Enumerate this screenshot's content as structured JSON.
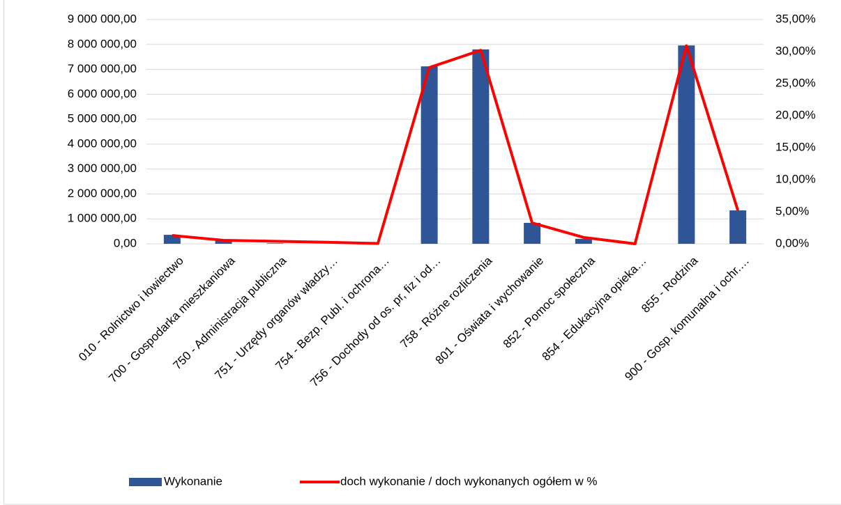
{
  "chart_data": {
    "type": "combo",
    "categories": [
      "010 - Rolnictwo i łowiectwo",
      "700 - Gospodarka mieszkaniowa",
      "750 - Administracja publiczna",
      "751 - Urzędy organów władzy…",
      "754 - Bezp. Publ. i ochrona…",
      "756 - Dochody od os. pr, fiz i od…",
      "758 - Różne rozliczenia",
      "801 - Oświata i wychowanie",
      "852 - Pomoc społeczna",
      "854 - Edukacyjna opieka…",
      "855 -  Rodzina",
      "900 - Gosp. komunalna i ochr.…"
    ],
    "series": [
      {
        "name": "Wykonanie",
        "type": "bar",
        "color": "#2f5597",
        "values": [
          360000,
          150000,
          20000,
          0,
          0,
          7120000,
          7800000,
          840000,
          200000,
          0,
          7960000,
          1340000
        ]
      },
      {
        "name": "doch wykonanie / doch wykonanych ogółem w %",
        "type": "line",
        "axis": "y2",
        "color": "#ff0000",
        "values": [
          1.3,
          0.55,
          0.4,
          0.25,
          0.05,
          27.5,
          30.2,
          3.26,
          1.0,
          0.0,
          30.9,
          5.2
        ]
      }
    ],
    "ylim": [
      0,
      9000000
    ],
    "yticks": [
      {
        "value": 0,
        "label": "0,00"
      },
      {
        "value": 1000000,
        "label": "1 000 000,00"
      },
      {
        "value": 2000000,
        "label": "2 000 000,00"
      },
      {
        "value": 3000000,
        "label": "3 000 000,00"
      },
      {
        "value": 4000000,
        "label": "4 000 000,00"
      },
      {
        "value": 5000000,
        "label": "5 000 000,00"
      },
      {
        "value": 6000000,
        "label": "6 000 000,00"
      },
      {
        "value": 7000000,
        "label": "7 000 000,00"
      },
      {
        "value": 8000000,
        "label": "8 000 000,00"
      },
      {
        "value": 9000000,
        "label": "9 000 000,00"
      }
    ],
    "y2lim": [
      0,
      35
    ],
    "y2ticks": [
      {
        "value": 0,
        "label": "0,00%"
      },
      {
        "value": 5,
        "label": "5,00%"
      },
      {
        "value": 10,
        "label": "10,00%"
      },
      {
        "value": 15,
        "label": "15,00%"
      },
      {
        "value": 20,
        "label": "20,00%"
      },
      {
        "value": 25,
        "label": "25,00%"
      },
      {
        "value": 30,
        "label": "30,00%"
      },
      {
        "value": 35,
        "label": "35,00%"
      }
    ],
    "grid": true,
    "legend": "bottom"
  }
}
